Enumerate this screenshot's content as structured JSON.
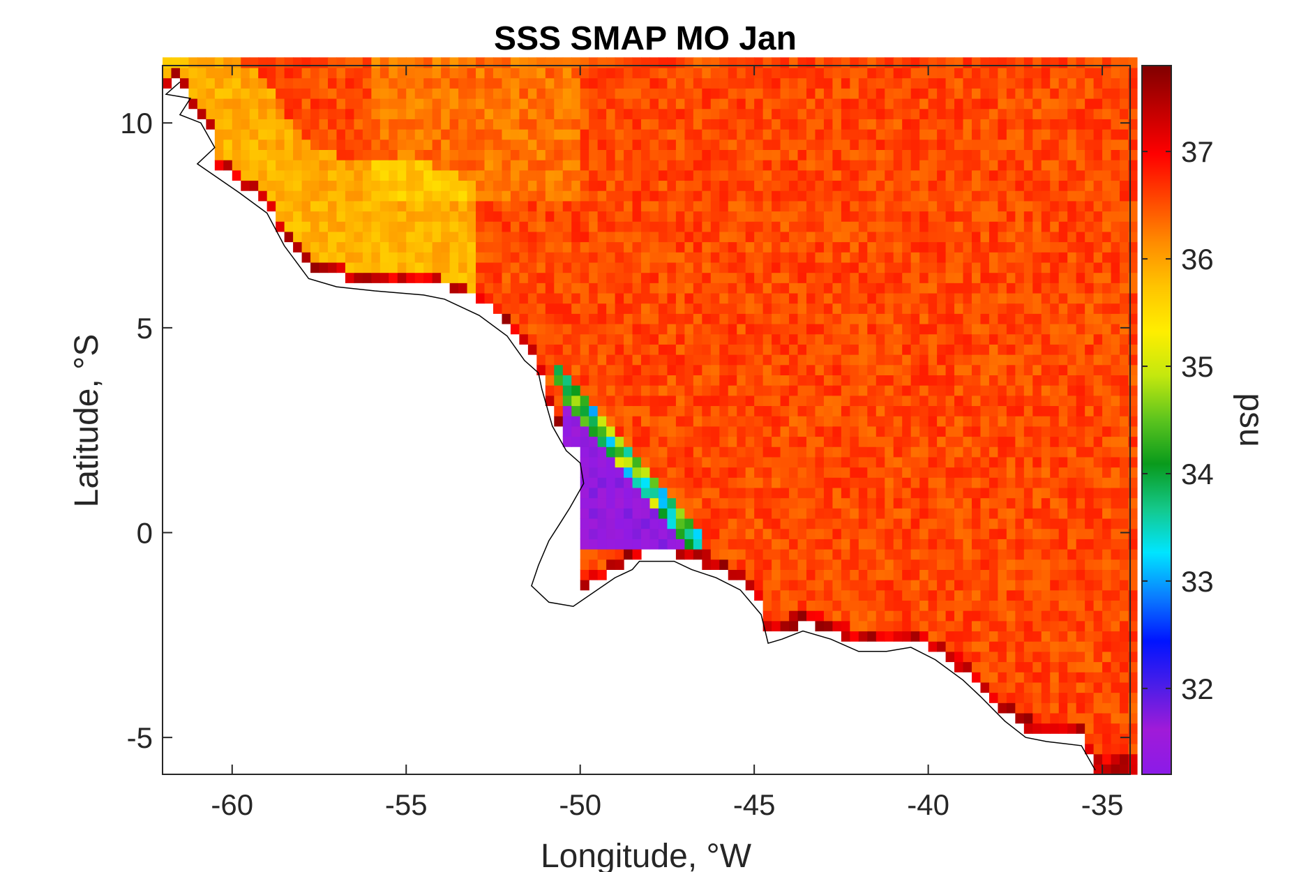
{
  "chart_data": {
    "type": "heatmap",
    "title": "SSS SMAP MO Jan",
    "xlabel": "Longitude, °W",
    "ylabel": "Latitude, °S",
    "xlim": [
      -62,
      -34.2
    ],
    "ylim": [
      -5.9,
      11.4
    ],
    "xticks": [
      -60,
      -55,
      -50,
      -45,
      -40,
      -35
    ],
    "yticks": [
      10,
      5,
      0,
      -5
    ],
    "xtick_labels": [
      "-60",
      "-55",
      "-50",
      "-45",
      "-40",
      "-35"
    ],
    "ytick_labels": [
      "10",
      "5",
      "0",
      "-5"
    ],
    "colorbar": {
      "label": "psu",
      "clim": [
        31.2,
        37.8
      ],
      "ticks": [
        32,
        33,
        34,
        35,
        36,
        37
      ],
      "tick_labels": [
        "32",
        "33",
        "34",
        "35",
        "36",
        "37"
      ],
      "colormap": [
        "#8b1be8",
        "#a01bd8",
        "#4b1de8",
        "#0014ff",
        "#0a7cff",
        "#00e5ff",
        "#14c88a",
        "#099a1c",
        "#5cc41e",
        "#c4e80e",
        "#ffee00",
        "#ffc400",
        "#ff8c00",
        "#ff4500",
        "#ff0000",
        "#c00000",
        "#800000"
      ]
    },
    "grid": false,
    "field_resolution_deg": 0.25,
    "field_summary": {
      "open_ocean_psu": [
        36.3,
        36.8
      ],
      "coastal_fresh_band_psu": [
        35.6,
        36.0
      ],
      "amazon_plume_psu": [
        31.3,
        32.5
      ],
      "plume_edge_psu": [
        33.0,
        35.2
      ]
    },
    "coastline_lonlat": [
      [
        -61.5,
        11.0
      ],
      [
        -61.9,
        10.7
      ],
      [
        -61.2,
        10.6
      ],
      [
        -61.5,
        10.2
      ],
      [
        -60.9,
        10.0
      ],
      [
        -60.5,
        9.4
      ],
      [
        -61.0,
        9.0
      ],
      [
        -59.8,
        8.3
      ],
      [
        -59.0,
        7.8
      ],
      [
        -58.5,
        7.0
      ],
      [
        -57.8,
        6.2
      ],
      [
        -57.0,
        6.0
      ],
      [
        -55.9,
        5.9
      ],
      [
        -54.5,
        5.8
      ],
      [
        -53.9,
        5.7
      ],
      [
        -52.9,
        5.3
      ],
      [
        -52.1,
        4.8
      ],
      [
        -51.6,
        4.2
      ],
      [
        -51.2,
        3.9
      ],
      [
        -51.1,
        3.5
      ],
      [
        -50.8,
        2.6
      ],
      [
        -50.4,
        2.0
      ],
      [
        -50.0,
        1.7
      ],
      [
        -49.9,
        1.2
      ],
      [
        -50.3,
        0.6
      ],
      [
        -50.6,
        0.2
      ],
      [
        -50.9,
        -0.2
      ],
      [
        -51.2,
        -0.8
      ],
      [
        -51.4,
        -1.3
      ],
      [
        -50.9,
        -1.7
      ],
      [
        -50.2,
        -1.8
      ],
      [
        -49.0,
        -1.1
      ],
      [
        -48.5,
        -0.9
      ],
      [
        -48.3,
        -0.7
      ],
      [
        -47.9,
        -0.7
      ],
      [
        -47.3,
        -0.7
      ],
      [
        -46.8,
        -0.9
      ],
      [
        -46.1,
        -1.1
      ],
      [
        -45.4,
        -1.4
      ],
      [
        -44.8,
        -2.0
      ],
      [
        -44.6,
        -2.7
      ],
      [
        -44.2,
        -2.6
      ],
      [
        -43.6,
        -2.4
      ],
      [
        -42.8,
        -2.6
      ],
      [
        -42.0,
        -2.9
      ],
      [
        -41.2,
        -2.9
      ],
      [
        -40.5,
        -2.8
      ],
      [
        -39.8,
        -3.1
      ],
      [
        -39.0,
        -3.6
      ],
      [
        -38.5,
        -4.0
      ],
      [
        -37.8,
        -4.6
      ],
      [
        -37.2,
        -5.0
      ],
      [
        -36.6,
        -5.1
      ],
      [
        -35.6,
        -5.2
      ],
      [
        -35.2,
        -5.8
      ]
    ]
  }
}
